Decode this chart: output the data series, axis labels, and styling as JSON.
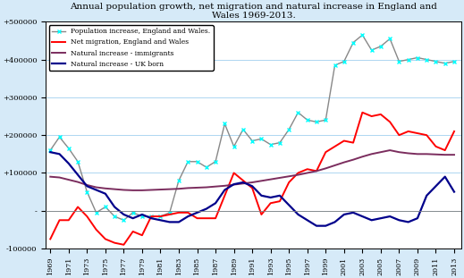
{
  "title": "Annual population growth, net migration and natural increase in England and\nWales 1969-2013.",
  "years": [
    1969,
    1970,
    1971,
    1972,
    1973,
    1974,
    1975,
    1976,
    1977,
    1978,
    1979,
    1980,
    1981,
    1982,
    1983,
    1984,
    1985,
    1986,
    1987,
    1988,
    1989,
    1990,
    1991,
    1992,
    1993,
    1994,
    1995,
    1996,
    1997,
    1998,
    1999,
    2000,
    2001,
    2002,
    2003,
    2004,
    2005,
    2006,
    2007,
    2008,
    2009,
    2010,
    2011,
    2012,
    2013
  ],
  "population_increase": [
    160000,
    195000,
    165000,
    130000,
    50000,
    -5000,
    10000,
    -15000,
    -25000,
    -5000,
    -15000,
    -15000,
    -15000,
    -5000,
    80000,
    130000,
    130000,
    115000,
    130000,
    230000,
    170000,
    215000,
    185000,
    190000,
    175000,
    180000,
    215000,
    260000,
    240000,
    235000,
    240000,
    385000,
    395000,
    445000,
    465000,
    425000,
    435000,
    455000,
    395000,
    400000,
    405000,
    400000,
    395000,
    390000,
    395000
  ],
  "net_migration": [
    -75000,
    -25000,
    -25000,
    10000,
    -15000,
    -50000,
    -75000,
    -85000,
    -90000,
    -55000,
    -65000,
    -15000,
    -15000,
    -10000,
    -5000,
    -5000,
    -20000,
    -20000,
    -20000,
    40000,
    100000,
    80000,
    60000,
    -10000,
    20000,
    25000,
    75000,
    100000,
    110000,
    105000,
    155000,
    170000,
    185000,
    180000,
    260000,
    250000,
    255000,
    235000,
    200000,
    210000,
    205000,
    200000,
    170000,
    160000,
    210000
  ],
  "natural_immigrants": [
    90000,
    88000,
    82000,
    76000,
    68000,
    62000,
    59000,
    57000,
    55000,
    54000,
    54000,
    55000,
    56000,
    57000,
    58000,
    60000,
    61000,
    62000,
    64000,
    66000,
    69000,
    72000,
    75000,
    79000,
    83000,
    87000,
    91000,
    95000,
    100000,
    105000,
    112000,
    120000,
    128000,
    135000,
    143000,
    150000,
    155000,
    160000,
    155000,
    152000,
    150000,
    150000,
    149000,
    148000,
    148000
  ],
  "natural_uk_born": [
    155000,
    150000,
    125000,
    95000,
    65000,
    55000,
    45000,
    10000,
    -10000,
    -20000,
    -10000,
    -20000,
    -25000,
    -30000,
    -30000,
    -15000,
    -5000,
    5000,
    20000,
    55000,
    70000,
    75000,
    65000,
    40000,
    35000,
    40000,
    15000,
    -10000,
    -25000,
    -40000,
    -40000,
    -30000,
    -10000,
    -5000,
    -15000,
    -25000,
    -20000,
    -15000,
    -25000,
    -30000,
    -20000,
    40000,
    65000,
    90000,
    50000
  ],
  "colors": {
    "population": "#888888",
    "net_migration": "#FF0000",
    "natural_immigrants": "#7B2D5E",
    "natural_uk_born": "#00008B"
  },
  "ylim": [
    -100000,
    500000
  ],
  "yticks": [
    -100000,
    0,
    100000,
    200000,
    300000,
    400000,
    500000
  ],
  "ytick_labels": [
    "-100000",
    "-",
    "+100000",
    "+200000",
    "+300000",
    "+400000",
    "+500000"
  ],
  "bg_color": "#D6EAF8",
  "plot_bg": "#FFFFFF",
  "grid_color": "#AED6F1"
}
